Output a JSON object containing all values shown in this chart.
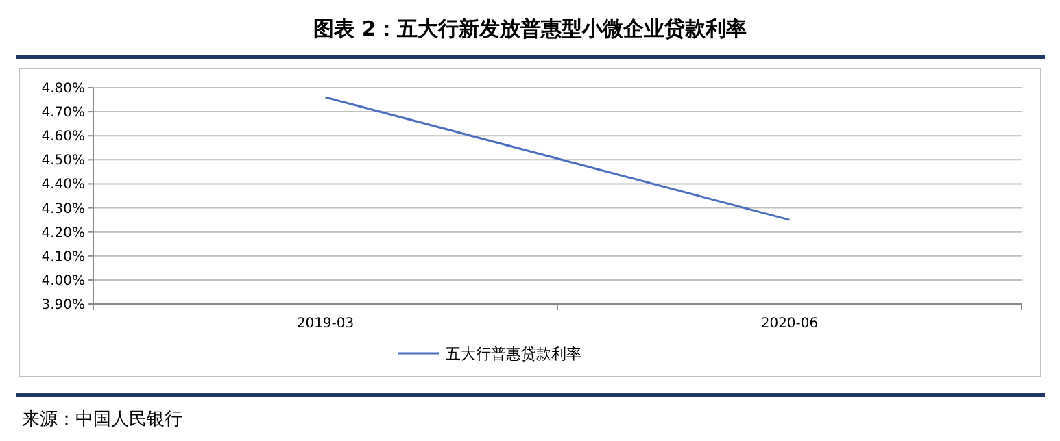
{
  "chart_data": {
    "type": "line",
    "title": "图表 2：五大行新发放普惠型小微企业贷款利率",
    "categories": [
      "2019-03",
      "2020-06"
    ],
    "series": [
      {
        "name": "五大行普惠贷款利率",
        "color": "#4a6fbf",
        "values": [
          4.76,
          4.25
        ]
      }
    ],
    "ylim": [
      3.9,
      4.8
    ],
    "yticks": [
      {
        "value": 3.9,
        "label": "3.90%"
      },
      {
        "value": 4.0,
        "label": "4.00%"
      },
      {
        "value": 4.1,
        "label": "4.10%"
      },
      {
        "value": 4.2,
        "label": "4.20%"
      },
      {
        "value": 4.3,
        "label": "4.30%"
      },
      {
        "value": 4.4,
        "label": "4.40%"
      },
      {
        "value": 4.5,
        "label": "4.50%"
      },
      {
        "value": 4.6,
        "label": "4.60%"
      },
      {
        "value": 4.7,
        "label": "4.70%"
      },
      {
        "value": 4.8,
        "label": "4.80%"
      }
    ],
    "grid": "y",
    "legend": "bottom",
    "marker": "none",
    "line_style": "solid",
    "annotations": [
      "来源：中国人民银行"
    ]
  }
}
